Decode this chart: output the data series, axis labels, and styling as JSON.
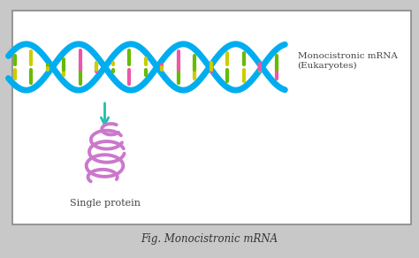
{
  "title": "Fig. Monocistronic mRNA",
  "label_mrna": "Monocistronic mRNA\n(Eukaryotes)",
  "label_protein": "Single protein",
  "dna_color": "#00AEEF",
  "dna_lw": 5,
  "arrow_color": "#20C0B0",
  "protein_color": "#CC77CC",
  "bar_green": "#66BB00",
  "bar_yellow": "#CCCC00",
  "bar_pink": "#EE55AA",
  "background_color": "#ffffff",
  "border_color": "#888888",
  "text_color": "#333333",
  "fig_width": 4.74,
  "fig_height": 2.92,
  "dpi": 100
}
